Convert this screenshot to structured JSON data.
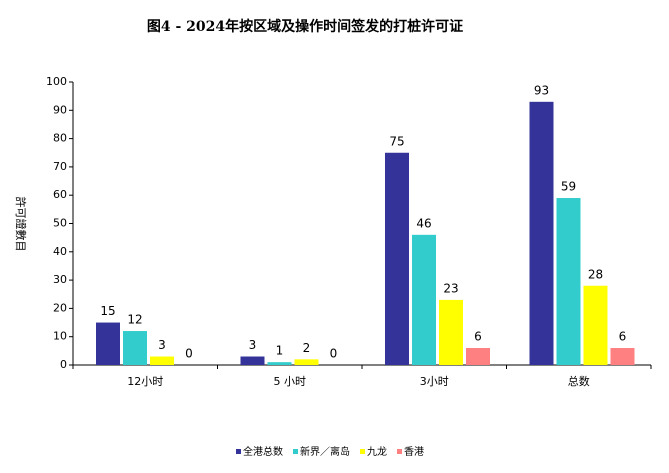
{
  "chart_data": {
    "type": "bar",
    "title": "图4 - 2024年按区域及操作时间签发的打桩许可证",
    "y_label": "許可證數目",
    "categories": [
      "12小时",
      "5 小时",
      "3小时",
      "总数"
    ],
    "series": [
      {
        "name": "全港总数",
        "color": "#333399",
        "values": [
          15,
          3,
          75,
          93
        ]
      },
      {
        "name": "新界／离岛",
        "color": "#33cccc",
        "values": [
          12,
          1,
          46,
          59
        ]
      },
      {
        "name": "九龙",
        "color": "#ffff00",
        "values": [
          3,
          2,
          23,
          28
        ]
      },
      {
        "name": "香港",
        "color": "#ff8080",
        "values": [
          0,
          0,
          6,
          6
        ]
      }
    ],
    "ylim": [
      0,
      100
    ],
    "yticks": [
      0,
      10,
      20,
      30,
      40,
      50,
      60,
      70,
      80,
      90,
      100
    ],
    "grid": false,
    "legend": "bottom"
  }
}
